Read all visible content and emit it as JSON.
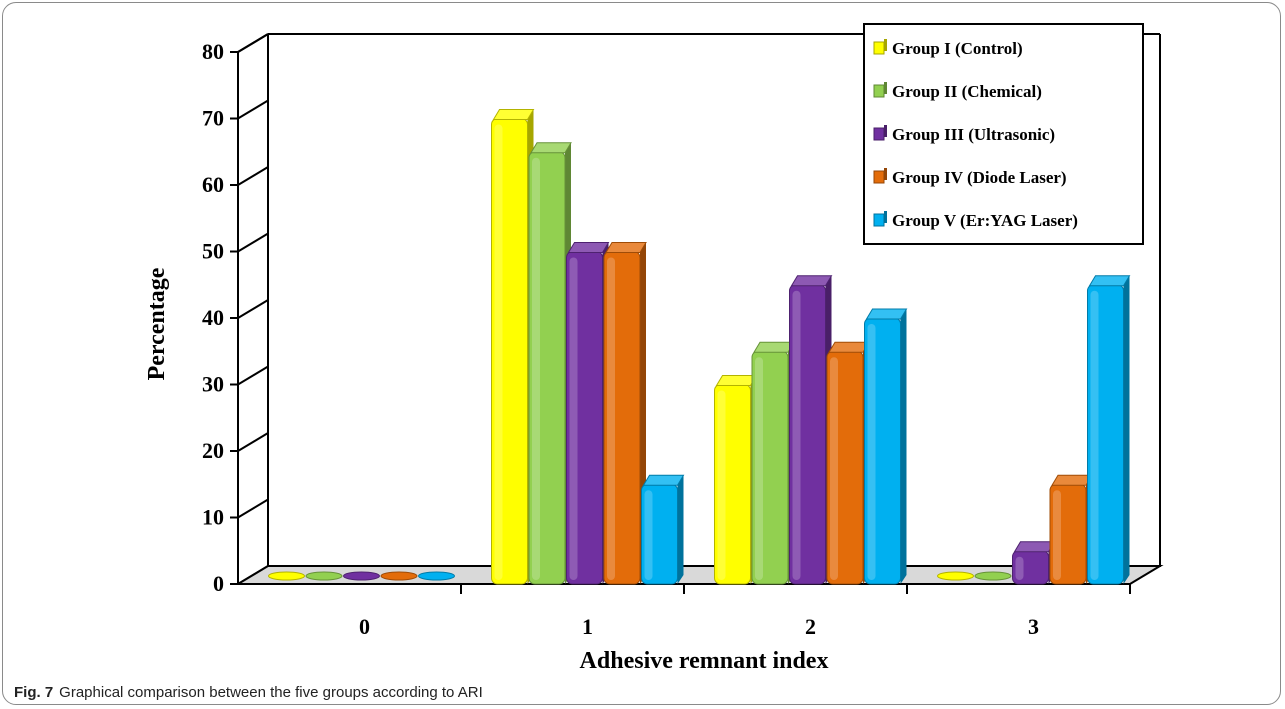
{
  "chart_data": {
    "type": "bar",
    "xlabel": "Adhesive remnant index",
    "ylabel": "Percentage",
    "ylim": [
      0,
      80
    ],
    "yticks": [
      "0",
      "10",
      "20",
      "30",
      "40",
      "50",
      "60",
      "70",
      "80"
    ],
    "categories": [
      "0",
      "1",
      "2",
      "3"
    ],
    "series": [
      {
        "name": "Group I (Control)",
        "color": "#FFFF00",
        "values": [
          0,
          70,
          30,
          0
        ]
      },
      {
        "name": "Group II (Chemical)",
        "color": "#92D050",
        "values": [
          0,
          65,
          35,
          0
        ]
      },
      {
        "name": "Group III (Ultrasonic)",
        "color": "#7030A0",
        "values": [
          0,
          50,
          45,
          5
        ]
      },
      {
        "name": "Group IV (Diode Laser)",
        "color": "#E36C0A",
        "values": [
          0,
          50,
          35,
          15
        ]
      },
      {
        "name": "Group V (Er:YAG Laser)",
        "color": "#00B0F0",
        "values": [
          0,
          15,
          40,
          45
        ]
      }
    ],
    "legend_position": "top-right",
    "grid": false,
    "style": "3d-bar"
  },
  "caption": {
    "label": "Fig. 7",
    "text": "Graphical comparison between the five groups according to ARI"
  }
}
